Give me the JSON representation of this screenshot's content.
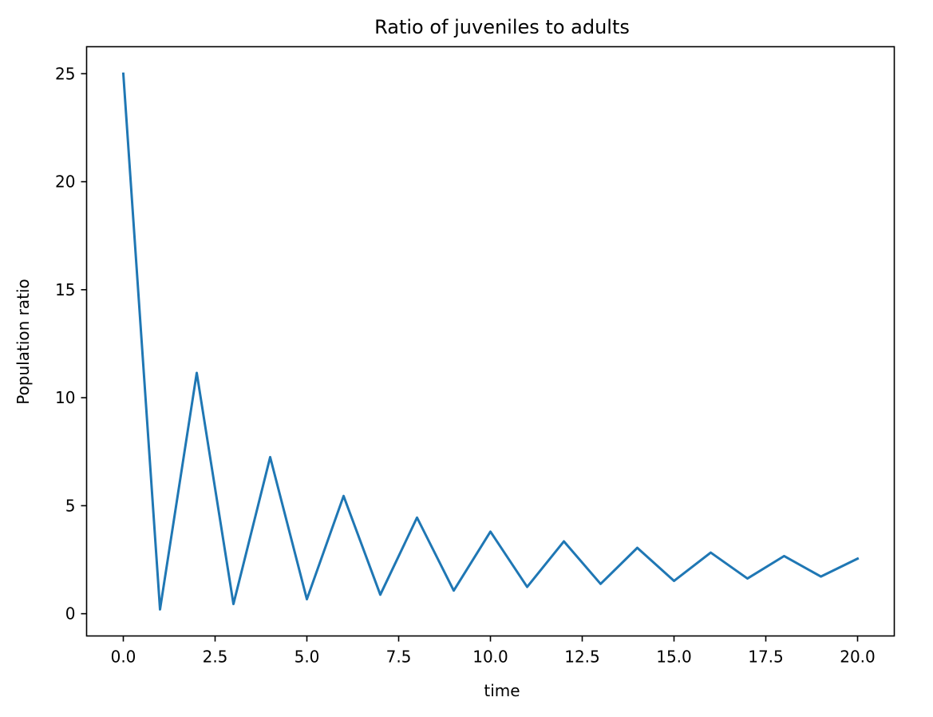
{
  "chart_data": {
    "type": "line",
    "title": "Ratio of juveniles to adults",
    "xlabel": "time",
    "ylabel": "Population ratio",
    "xlim": [
      -1.0,
      21.0
    ],
    "ylim": [
      -1.03,
      26.25
    ],
    "xticks": [
      0.0,
      2.5,
      5.0,
      7.5,
      10.0,
      12.5,
      15.0,
      17.5,
      20.0
    ],
    "xtick_labels": [
      "0.0",
      "2.5",
      "5.0",
      "7.5",
      "10.0",
      "12.5",
      "15.0",
      "17.5",
      "20.0"
    ],
    "yticks": [
      0,
      5,
      10,
      15,
      20,
      25
    ],
    "ytick_labels": [
      "0",
      "5",
      "10",
      "15",
      "20",
      "25"
    ],
    "grid": false,
    "legend": false,
    "series": [
      {
        "color": "#1f77b4",
        "x": [
          0,
          1,
          2,
          3,
          4,
          5,
          6,
          7,
          8,
          9,
          10,
          11,
          12,
          13,
          14,
          15,
          16,
          17,
          18,
          19,
          20
        ],
        "y": [
          25.0,
          0.2,
          11.15,
          0.45,
          7.25,
          0.67,
          5.45,
          0.88,
          4.45,
          1.07,
          3.8,
          1.24,
          3.35,
          1.38,
          3.05,
          1.52,
          2.83,
          1.63,
          2.67,
          1.72,
          2.55
        ]
      }
    ]
  }
}
